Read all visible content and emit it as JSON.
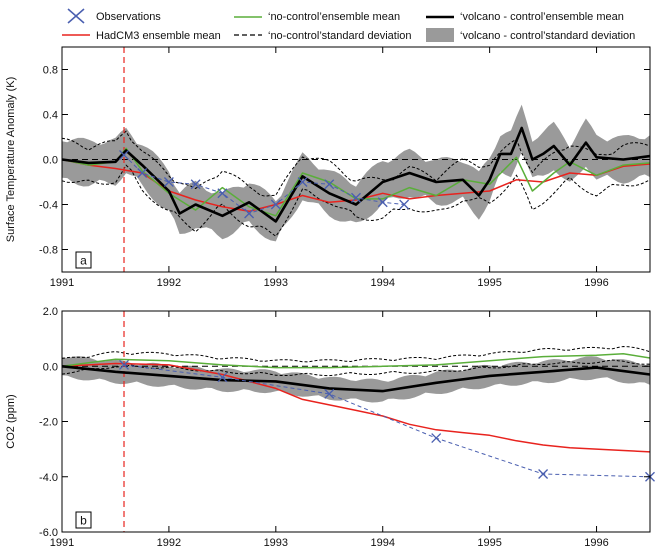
{
  "legend": {
    "observations": "Observations",
    "hadcm3": "HadCM3 ensemble mean",
    "nocontrol_mean": "‘no-control’ensemble mean",
    "nocontrol_sd": "‘no-control’standard deviation",
    "volcano_mean": "‘volcano - control’ensemble mean",
    "volcano_sd": "‘volcano - control’standard deviation"
  },
  "colors": {
    "observations": "#4a5fb0",
    "hadcm3": "#e8231e",
    "nocontrol": "#5aae3a",
    "volcano": "#000000",
    "band": "#9a9a9a",
    "eruption": "#e8231e"
  },
  "eruption_year": 1991.58,
  "chart_data": [
    {
      "panel": "a",
      "type": "line",
      "ylabel": "Surface Temperature Anomaly (K)",
      "xlim": [
        1991.0,
        1996.5
      ],
      "ylim": [
        -1.0,
        1.0
      ],
      "xticks": [
        "1991",
        "1992",
        "1993",
        "1994",
        "1995",
        "1996"
      ],
      "yticks": [
        "-0.8",
        "-0.4",
        "0.0",
        "0.4",
        "0.8"
      ],
      "zero_line": true,
      "series": [
        {
          "name": "HadCM3 ensemble mean",
          "x": [
            1991.0,
            1991.25,
            1991.5,
            1991.75,
            1992.0,
            1992.25,
            1992.5,
            1992.75,
            1993.0,
            1993.25,
            1993.5,
            1993.75,
            1994.0,
            1994.25,
            1994.5,
            1994.75,
            1995.0,
            1995.25,
            1995.5,
            1995.75,
            1996.0,
            1996.25,
            1996.5
          ],
          "y": [
            0.0,
            -0.05,
            -0.08,
            -0.12,
            -0.28,
            -0.36,
            -0.42,
            -0.46,
            -0.4,
            -0.32,
            -0.38,
            -0.36,
            -0.3,
            -0.35,
            -0.32,
            -0.3,
            -0.28,
            -0.18,
            -0.2,
            -0.12,
            -0.14,
            -0.06,
            -0.04
          ]
        },
        {
          "name": "‘no-control’ensemble mean",
          "x": [
            1991.0,
            1991.25,
            1991.5,
            1991.6,
            1991.75,
            1992.0,
            1992.25,
            1992.5,
            1992.75,
            1993.0,
            1993.25,
            1993.5,
            1993.75,
            1994.0,
            1994.25,
            1994.5,
            1994.75,
            1995.0,
            1995.25,
            1995.4,
            1995.6,
            1995.75,
            1996.0,
            1996.25,
            1996.5
          ],
          "y": [
            0.0,
            -0.05,
            -0.02,
            0.1,
            -0.1,
            -0.3,
            -0.45,
            -0.25,
            -0.42,
            -0.5,
            -0.12,
            -0.2,
            -0.35,
            -0.35,
            -0.25,
            -0.32,
            -0.18,
            -0.22,
            0.02,
            -0.28,
            -0.12,
            -0.02,
            -0.14,
            -0.05,
            -0.03
          ]
        },
        {
          "name": "‘volcano - control’ensemble mean",
          "x": [
            1991.0,
            1991.25,
            1991.5,
            1991.6,
            1991.75,
            1992.0,
            1992.1,
            1992.25,
            1992.5,
            1992.75,
            1993.0,
            1993.25,
            1993.5,
            1993.75,
            1994.0,
            1994.25,
            1994.5,
            1994.75,
            1994.9,
            1995.0,
            1995.1,
            1995.2,
            1995.3,
            1995.4,
            1995.5,
            1995.6,
            1995.75,
            1995.9,
            1996.0,
            1996.25,
            1996.5
          ],
          "y": [
            0.0,
            -0.03,
            -0.02,
            0.08,
            -0.05,
            -0.28,
            -0.48,
            -0.4,
            -0.5,
            -0.38,
            -0.55,
            -0.15,
            -0.3,
            -0.4,
            -0.2,
            -0.12,
            -0.2,
            -0.18,
            -0.32,
            -0.18,
            0.05,
            0.05,
            0.28,
            0.0,
            0.05,
            0.12,
            -0.05,
            0.15,
            0.02,
            0.0,
            0.03
          ]
        },
        {
          "name": "Observations",
          "x": [
            1991.58,
            1991.75,
            1992.0,
            1992.25,
            1992.5,
            1992.75,
            1993.0,
            1993.25,
            1993.5,
            1993.75,
            1994.0,
            1994.2
          ],
          "y": [
            0.04,
            -0.12,
            -0.2,
            -0.22,
            -0.3,
            -0.48,
            -0.4,
            -0.2,
            -0.22,
            -0.34,
            -0.38,
            -0.4
          ]
        }
      ]
    },
    {
      "panel": "b",
      "type": "line",
      "ylabel": "CO2 (ppm)",
      "xlim": [
        1991.0,
        1996.5
      ],
      "ylim": [
        -6.0,
        2.0
      ],
      "xticks": [
        "1991",
        "1992",
        "1993",
        "1994",
        "1995",
        "1996"
      ],
      "yticks": [
        "-6.0",
        "-4.0",
        "-2.0",
        "0.0",
        "2.0"
      ],
      "zero_line": true,
      "series": [
        {
          "name": "HadCM3 ensemble mean",
          "x": [
            1991.0,
            1991.5,
            1992.0,
            1992.5,
            1993.0,
            1993.25,
            1993.5,
            1993.75,
            1994.0,
            1994.25,
            1994.5,
            1994.75,
            1995.0,
            1995.25,
            1995.5,
            1995.75,
            1996.0,
            1996.25,
            1996.5
          ],
          "y": [
            0.0,
            0.1,
            0.05,
            -0.3,
            -0.8,
            -1.2,
            -1.4,
            -1.6,
            -1.8,
            -2.1,
            -2.3,
            -2.4,
            -2.5,
            -2.7,
            -2.85,
            -2.95,
            -3.0,
            -3.05,
            -3.1
          ]
        },
        {
          "name": "‘no-control’ensemble mean",
          "x": [
            1991.0,
            1991.5,
            1992.0,
            1992.5,
            1993.0,
            1993.5,
            1994.0,
            1994.5,
            1995.0,
            1995.5,
            1996.0,
            1996.25,
            1996.5
          ],
          "y": [
            0.0,
            0.25,
            0.2,
            0.05,
            -0.05,
            -0.05,
            0.0,
            0.05,
            0.2,
            0.35,
            0.4,
            0.45,
            0.3
          ]
        },
        {
          "name": "‘volcano - control’ensemble mean",
          "x": [
            1991.0,
            1991.5,
            1992.0,
            1992.5,
            1993.0,
            1993.5,
            1994.0,
            1994.5,
            1995.0,
            1995.5,
            1996.0,
            1996.5
          ],
          "y": [
            0.0,
            -0.2,
            -0.35,
            -0.5,
            -0.55,
            -0.8,
            -0.9,
            -0.6,
            -0.35,
            -0.2,
            -0.05,
            -0.3
          ]
        },
        {
          "name": "Observations",
          "x": [
            1991.58,
            1992.5,
            1993.5,
            1994.5,
            1995.5,
            1996.5
          ],
          "y": [
            0.05,
            -0.4,
            -1.0,
            -2.6,
            -3.9,
            -4.0
          ]
        }
      ]
    }
  ]
}
